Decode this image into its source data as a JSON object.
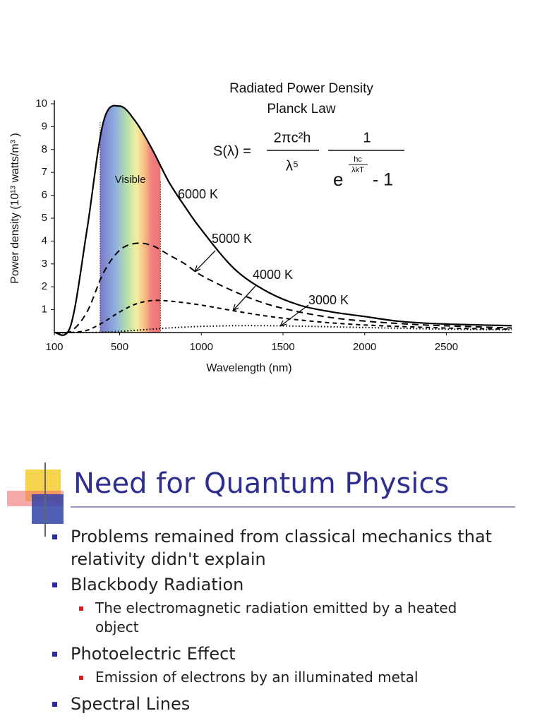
{
  "chart_data": {
    "type": "line",
    "title": "Radiated Power Density",
    "subtitle": "Planck Law",
    "xlabel": "Wavelength (nm)",
    "ylabel": "Power density (10¹³ watts/m³ )",
    "formula": {
      "lhs": "S(λ) =",
      "num1": "2πc²h",
      "den1": "λ⁵",
      "num2": "1",
      "den2_base": "e",
      "den2_exp_num": "hc",
      "den2_exp_den": "λkT",
      "den2_tail": "- 1"
    },
    "visible_label": "Visible",
    "visible_range": [
      380,
      750
    ],
    "x": [
      100,
      200,
      300,
      400,
      500,
      600,
      700,
      800,
      900,
      1000,
      1200,
      1400,
      1600,
      1800,
      2000,
      2200,
      2400,
      2600,
      2900
    ],
    "series": [
      {
        "name": "6000 K",
        "color": "#000000",
        "dash": "solid",
        "values": [
          0,
          0.3,
          4.5,
          9.2,
          9.9,
          9.2,
          8.0,
          6.6,
          5.5,
          4.5,
          2.8,
          1.8,
          1.2,
          0.9,
          0.7,
          0.5,
          0.4,
          0.35,
          0.3
        ]
      },
      {
        "name": "5000 K",
        "color": "#000000",
        "dash": "long",
        "values": [
          0,
          0.05,
          0.9,
          2.6,
          3.6,
          3.9,
          3.8,
          3.4,
          3.0,
          2.5,
          1.8,
          1.25,
          0.9,
          0.65,
          0.5,
          0.4,
          0.32,
          0.27,
          0.2
        ]
      },
      {
        "name": "4000 K",
        "color": "#000000",
        "dash": "short",
        "values": [
          0,
          0,
          0.1,
          0.45,
          0.9,
          1.25,
          1.4,
          1.38,
          1.3,
          1.2,
          0.95,
          0.72,
          0.55,
          0.42,
          0.33,
          0.27,
          0.22,
          0.18,
          0.15
        ]
      },
      {
        "name": "3000 K",
        "color": "#000000",
        "dash": "dotted",
        "values": [
          0,
          0,
          0,
          0.02,
          0.05,
          0.1,
          0.15,
          0.2,
          0.24,
          0.27,
          0.3,
          0.3,
          0.28,
          0.25,
          0.22,
          0.19,
          0.16,
          0.14,
          0.12
        ]
      }
    ],
    "xlim": [
      100,
      2900
    ],
    "ylim": [
      0,
      10
    ],
    "xticks": [
      100,
      500,
      1000,
      1500,
      2000,
      2500
    ],
    "yticks": [
      1,
      2,
      3,
      4,
      5,
      6,
      7,
      8,
      9,
      10
    ]
  },
  "slide": {
    "title": "Need for Quantum Physics",
    "bullets": [
      {
        "text": "Problems remained from classical mechanics that relativity didn't explain",
        "level": 1
      },
      {
        "text": "Blackbody Radiation",
        "level": 1
      },
      {
        "text": "The electromagnetic radiation emitted by a heated object",
        "level": 2
      },
      {
        "text": "Photoelectric Effect",
        "level": 1
      },
      {
        "text": "Emission of electrons by an illuminated metal",
        "level": 2
      },
      {
        "text": "Spectral Lines",
        "level": 1
      }
    ]
  }
}
